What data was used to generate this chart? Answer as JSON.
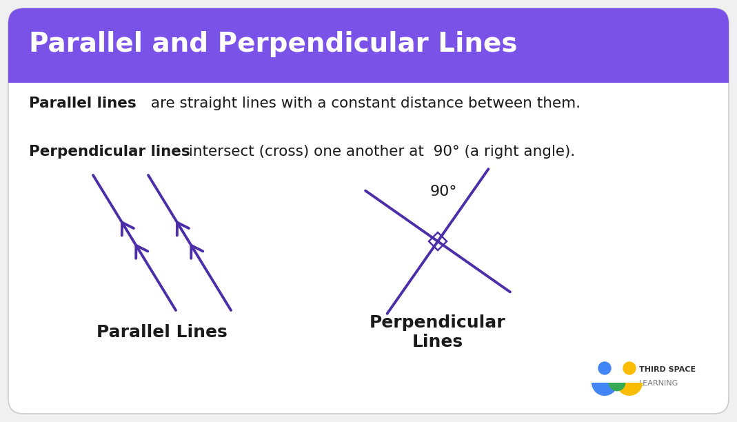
{
  "title": "Parallel and Perpendicular Lines",
  "header_bg": "#7B52E8",
  "body_bg": "#FFFFFF",
  "border_color": "#CCCCCC",
  "text_color": "#1a1a1a",
  "title_color": "#FFFFFF",
  "title_fontsize": 28,
  "label_fontsize": 18,
  "para_text_bold": "Parallel lines",
  "para_text_rest": " are straight lines with a constant distance between them.",
  "perp_text_bold": "Perpendicular lines",
  "perp_text_rest": " intersect (cross) one another at  90° (a right angle).",
  "parallel_label": "Parallel Lines",
  "perpendicular_label": "Perpendicular\nLines",
  "degree_label": "90°",
  "purple": "#4B2EA8",
  "logo_blue": "#4285F4",
  "logo_yellow": "#FBBC04",
  "logo_green": "#34A853",
  "logo_text_line1": "THIRD SPACE",
  "logo_text_line2": "LEARNING"
}
